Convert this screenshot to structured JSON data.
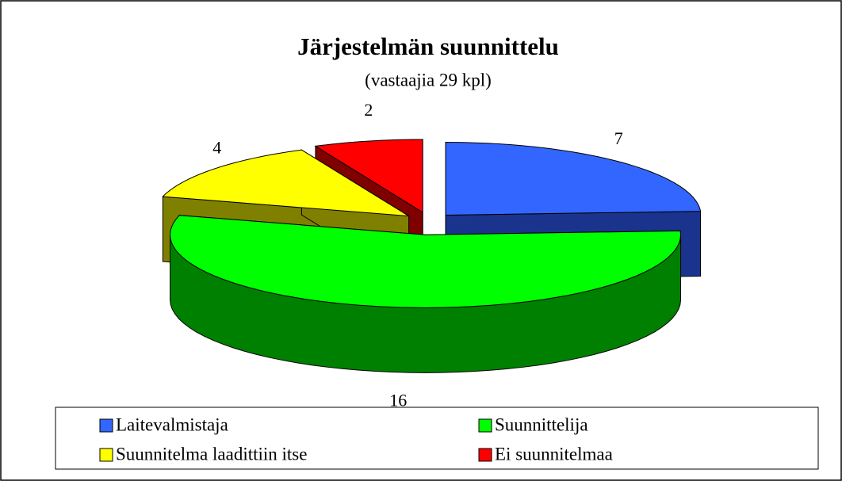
{
  "chart_data": {
    "type": "pie",
    "title": "Järjestelmän suunnittelu",
    "subtitle": "(vastaajia 29 kpl)",
    "categories": [
      "Laitevalmistaja",
      "Suunnittelija",
      "Suunnitelma laadittiin itse",
      "Ei suunnitelmaa"
    ],
    "values": [
      7,
      16,
      4,
      2
    ],
    "colors": [
      "#3366ff",
      "#00ff00",
      "#ffff00",
      "#ff0000"
    ],
    "legend": "bottom"
  }
}
